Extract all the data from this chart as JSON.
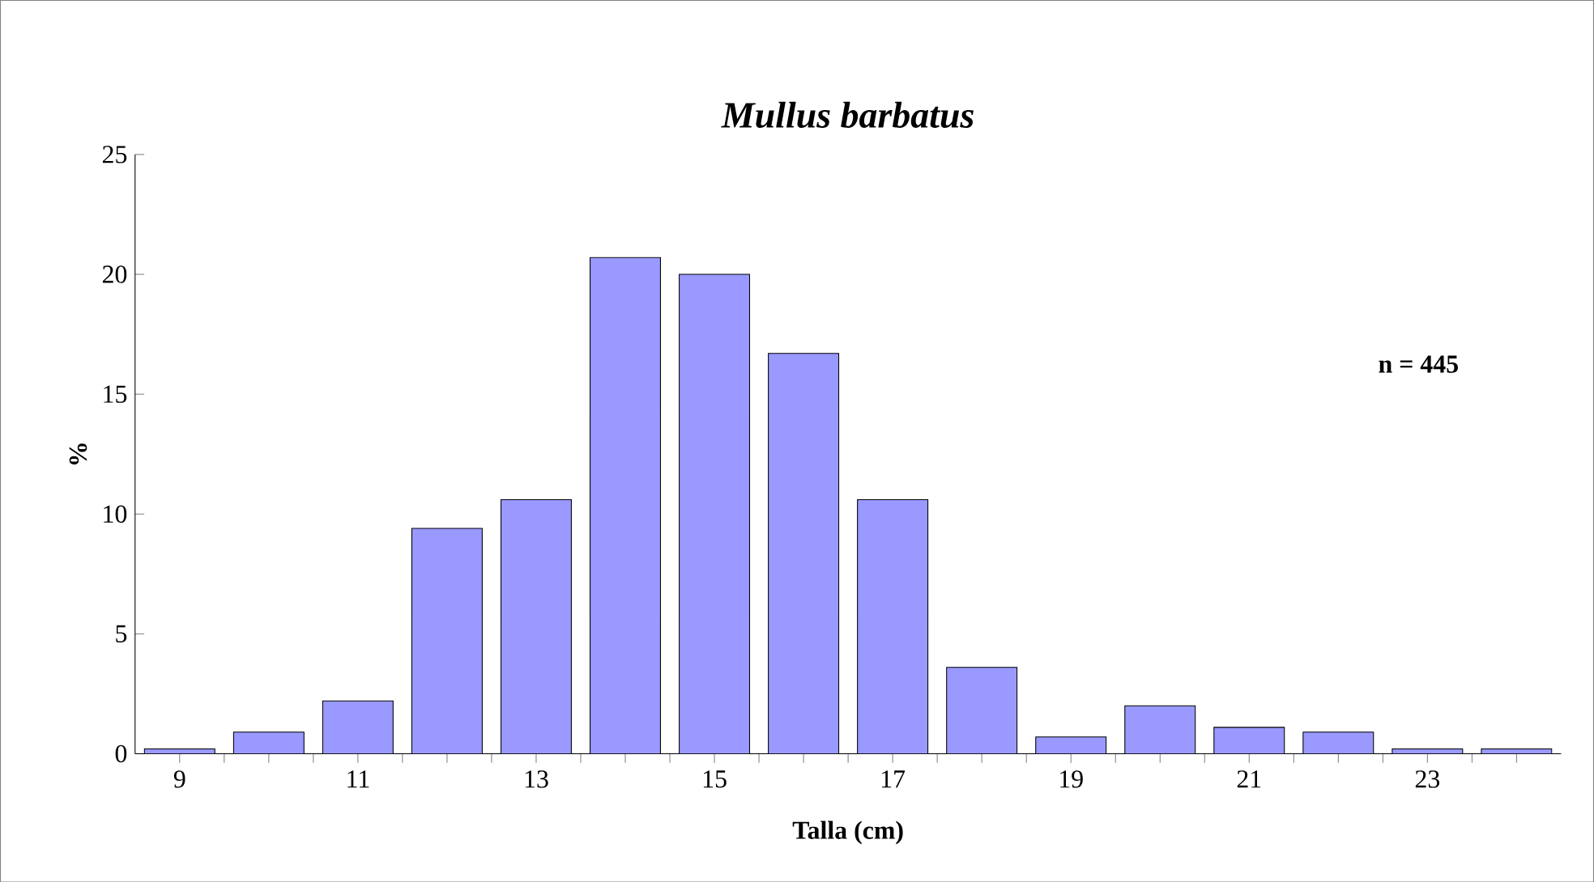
{
  "chart_data": {
    "type": "bar",
    "title": "Mullus barbatus",
    "xlabel": "Talla (cm)",
    "ylabel": "%",
    "categories": [
      "9",
      null,
      "11",
      null,
      "13",
      null,
      "15",
      null,
      "17",
      null,
      "19",
      null,
      "21",
      null,
      "23",
      null
    ],
    "values": [
      0.2,
      0.9,
      2.2,
      9.4,
      10.6,
      20.7,
      20.0,
      16.7,
      10.6,
      3.6,
      0.7,
      2.0,
      1.1,
      0.9,
      0.2,
      0.2
    ],
    "color": "#9999ff",
    "ylim": [
      0,
      25
    ],
    "yticks": [
      0,
      5,
      10,
      15,
      20,
      25
    ],
    "annotations": [
      "n = 445"
    ]
  }
}
